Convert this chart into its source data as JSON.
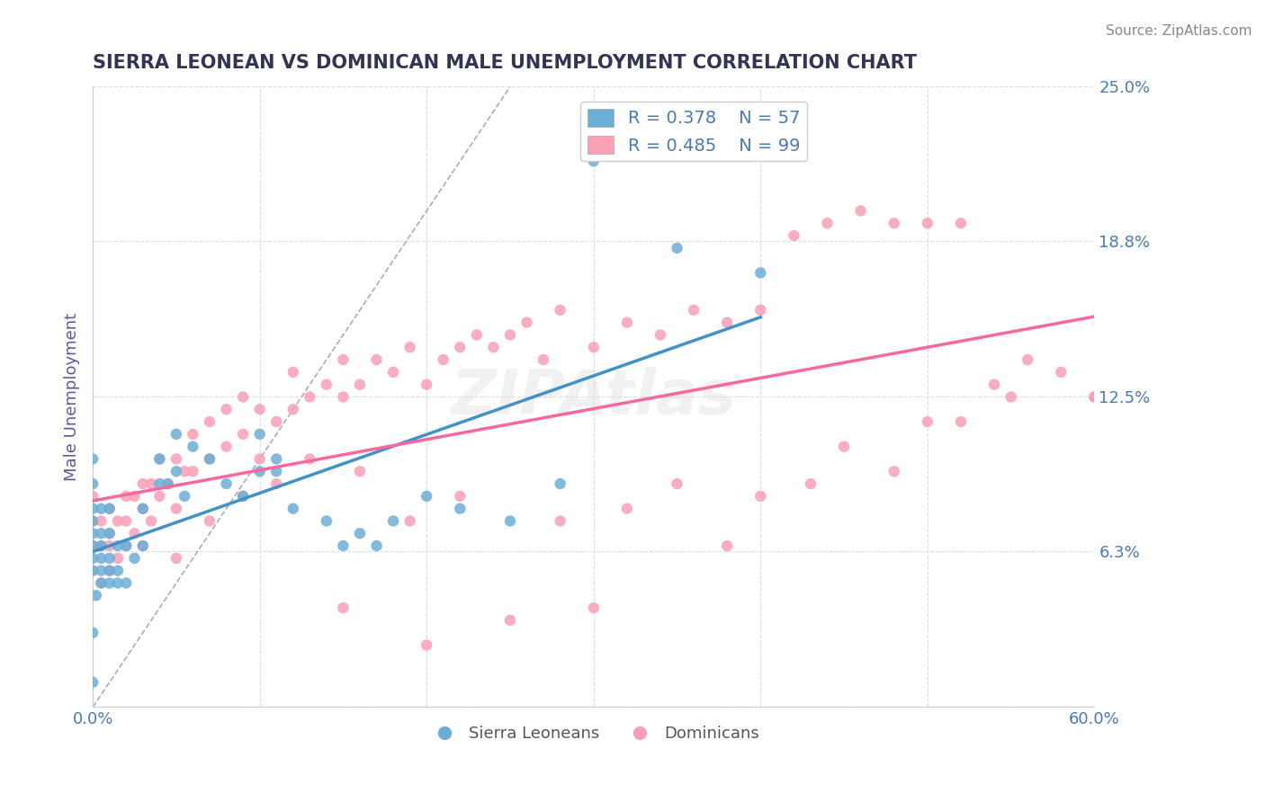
{
  "title": "SIERRA LEONEAN VS DOMINICAN MALE UNEMPLOYMENT CORRELATION CHART",
  "source": "Source: ZipAtlas.com",
  "xlabel": "",
  "ylabel": "Male Unemployment",
  "x_min": 0.0,
  "x_max": 0.6,
  "y_min": 0.0,
  "y_max": 0.25,
  "y_ticks": [
    0.0,
    0.063,
    0.125,
    0.188,
    0.25
  ],
  "y_tick_labels": [
    "",
    "6.3%",
    "12.5%",
    "18.8%",
    "25.0%"
  ],
  "x_ticks": [
    0.0,
    0.1,
    0.2,
    0.3,
    0.4,
    0.5,
    0.6
  ],
  "x_tick_labels": [
    "0.0%",
    "",
    "",
    "",
    "",
    "",
    "60.0%"
  ],
  "legend_R1": "0.378",
  "legend_N1": "57",
  "legend_R2": "0.485",
  "legend_N2": "99",
  "color_blue": "#6baed6",
  "color_blue_dark": "#4292c6",
  "color_pink": "#fa9fb5",
  "color_pink_dark": "#f768a1",
  "color_title": "#4a4a8a",
  "color_axis_label": "#5a5a9a",
  "color_tick_label": "#4a7ab5",
  "color_source": "#888888",
  "color_legend_text_blue": "#4a7ab5",
  "color_legend_R": "#333333",
  "background_color": "#ffffff",
  "grid_color": "#dddddd",
  "ref_line_color": "#aaaacc",
  "blue_scatter_x": [
    0.0,
    0.0,
    0.0,
    0.0,
    0.0,
    0.0,
    0.0,
    0.0,
    0.005,
    0.005,
    0.005,
    0.005,
    0.005,
    0.005,
    0.01,
    0.01,
    0.01,
    0.01,
    0.01,
    0.015,
    0.015,
    0.015,
    0.02,
    0.02,
    0.025,
    0.03,
    0.03,
    0.04,
    0.04,
    0.045,
    0.05,
    0.05,
    0.055,
    0.06,
    0.07,
    0.08,
    0.09,
    0.1,
    0.1,
    0.11,
    0.11,
    0.12,
    0.14,
    0.15,
    0.16,
    0.17,
    0.18,
    0.2,
    0.22,
    0.25,
    0.28,
    0.3,
    0.35,
    0.4,
    0.0,
    0.0,
    0.002
  ],
  "blue_scatter_y": [
    0.055,
    0.06,
    0.065,
    0.07,
    0.075,
    0.08,
    0.09,
    0.1,
    0.05,
    0.055,
    0.06,
    0.065,
    0.07,
    0.08,
    0.05,
    0.055,
    0.06,
    0.07,
    0.08,
    0.05,
    0.055,
    0.065,
    0.05,
    0.065,
    0.06,
    0.065,
    0.08,
    0.09,
    0.1,
    0.09,
    0.095,
    0.11,
    0.085,
    0.105,
    0.1,
    0.09,
    0.085,
    0.11,
    0.095,
    0.1,
    0.095,
    0.08,
    0.075,
    0.065,
    0.07,
    0.065,
    0.075,
    0.085,
    0.08,
    0.075,
    0.09,
    0.22,
    0.185,
    0.175,
    0.01,
    0.03,
    0.045
  ],
  "pink_scatter_x": [
    0.0,
    0.0,
    0.0,
    0.0,
    0.005,
    0.005,
    0.005,
    0.01,
    0.01,
    0.01,
    0.01,
    0.015,
    0.015,
    0.02,
    0.02,
    0.02,
    0.025,
    0.025,
    0.03,
    0.03,
    0.03,
    0.035,
    0.035,
    0.04,
    0.04,
    0.045,
    0.05,
    0.05,
    0.055,
    0.06,
    0.06,
    0.07,
    0.07,
    0.08,
    0.08,
    0.09,
    0.09,
    0.1,
    0.1,
    0.11,
    0.12,
    0.12,
    0.13,
    0.14,
    0.15,
    0.15,
    0.16,
    0.17,
    0.18,
    0.19,
    0.2,
    0.21,
    0.22,
    0.23,
    0.24,
    0.25,
    0.26,
    0.27,
    0.28,
    0.3,
    0.32,
    0.34,
    0.36,
    0.38,
    0.4,
    0.42,
    0.44,
    0.46,
    0.48,
    0.5,
    0.52,
    0.54,
    0.56,
    0.58,
    0.6,
    0.35,
    0.4,
    0.25,
    0.3,
    0.2,
    0.15,
    0.45,
    0.5,
    0.55,
    0.6,
    0.28,
    0.32,
    0.38,
    0.43,
    0.48,
    0.52,
    0.05,
    0.07,
    0.09,
    0.11,
    0.13,
    0.16,
    0.19,
    0.22
  ],
  "pink_scatter_y": [
    0.055,
    0.065,
    0.075,
    0.085,
    0.05,
    0.065,
    0.075,
    0.055,
    0.065,
    0.07,
    0.08,
    0.06,
    0.075,
    0.065,
    0.075,
    0.085,
    0.07,
    0.085,
    0.065,
    0.08,
    0.09,
    0.075,
    0.09,
    0.085,
    0.1,
    0.09,
    0.08,
    0.1,
    0.095,
    0.095,
    0.11,
    0.1,
    0.115,
    0.105,
    0.12,
    0.11,
    0.125,
    0.1,
    0.12,
    0.115,
    0.12,
    0.135,
    0.125,
    0.13,
    0.14,
    0.125,
    0.13,
    0.14,
    0.135,
    0.145,
    0.13,
    0.14,
    0.145,
    0.15,
    0.145,
    0.15,
    0.155,
    0.14,
    0.16,
    0.145,
    0.155,
    0.15,
    0.16,
    0.155,
    0.16,
    0.19,
    0.195,
    0.2,
    0.195,
    0.195,
    0.195,
    0.13,
    0.14,
    0.135,
    0.125,
    0.09,
    0.085,
    0.035,
    0.04,
    0.025,
    0.04,
    0.105,
    0.115,
    0.125,
    0.125,
    0.075,
    0.08,
    0.065,
    0.09,
    0.095,
    0.115,
    0.06,
    0.075,
    0.085,
    0.09,
    0.1,
    0.095,
    0.075,
    0.085
  ]
}
